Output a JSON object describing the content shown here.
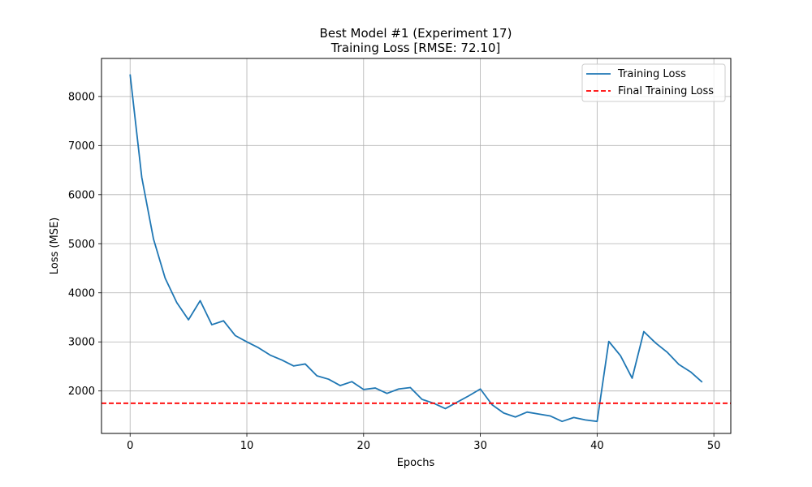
{
  "chart_data": {
    "type": "line",
    "title": "Best Model #1 (Experiment 17)",
    "subtitle": "Training Loss [RMSE: 72.10]",
    "xlabel": "Epochs",
    "ylabel": "Loss (MSE)",
    "xlim": [
      -2.45,
      51.45
    ],
    "ylim": [
      1135,
      8775
    ],
    "xticks": [
      0,
      10,
      20,
      30,
      40,
      50
    ],
    "yticks": [
      2000,
      3000,
      4000,
      5000,
      6000,
      7000,
      8000
    ],
    "grid": true,
    "legend_position": "upper right",
    "series": [
      {
        "name": "Training Loss",
        "color": "#1f77b4",
        "style": "solid",
        "x": [
          0,
          1,
          2,
          3,
          4,
          5,
          6,
          7,
          8,
          9,
          10,
          11,
          12,
          13,
          14,
          15,
          16,
          17,
          18,
          19,
          20,
          21,
          22,
          23,
          24,
          25,
          26,
          27,
          28,
          29,
          30,
          31,
          32,
          33,
          34,
          35,
          36,
          37,
          38,
          39,
          40,
          41,
          42,
          43,
          44,
          45,
          46,
          47,
          48,
          49
        ],
        "y": [
          8450,
          6350,
          5100,
          4300,
          3800,
          3450,
          3840,
          3350,
          3430,
          3130,
          3000,
          2880,
          2730,
          2630,
          2510,
          2550,
          2310,
          2240,
          2110,
          2190,
          2030,
          2060,
          1950,
          2040,
          2070,
          1830,
          1750,
          1640,
          1770,
          1900,
          2040,
          1720,
          1550,
          1470,
          1570,
          1530,
          1490,
          1380,
          1460,
          1410,
          1380,
          3010,
          2720,
          2260,
          3210,
          2980,
          2790,
          2540,
          2390,
          2180
        ]
      },
      {
        "name": "Final Training Loss",
        "color": "#ff0000",
        "style": "dashed",
        "y_constant": 1750
      }
    ]
  }
}
